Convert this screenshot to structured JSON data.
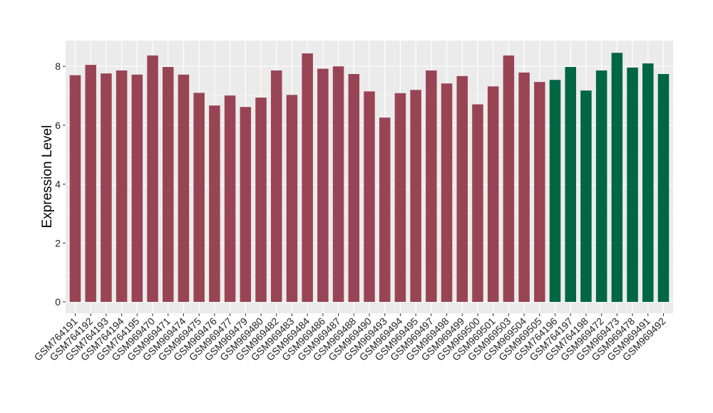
{
  "chart_data": {
    "type": "bar",
    "title": "",
    "xlabel": "",
    "ylabel": "Expression Level",
    "ylim": [
      0,
      8.9
    ],
    "yticks": [
      0,
      2,
      4,
      6,
      8
    ],
    "ytick_labels": [
      "0",
      "2",
      "4",
      "6",
      "8"
    ],
    "grid": true,
    "legend": "none",
    "colors": {
      "panel_background": "#ebebeb",
      "grid_major": "#ffffff",
      "group_a": "#994455",
      "group_b": "#006644"
    },
    "categories": [
      "GSM764191",
      "GSM764192",
      "GSM764193",
      "GSM764194",
      "GSM764195",
      "GSM969470",
      "GSM969471",
      "GSM969474",
      "GSM969475",
      "GSM969476",
      "GSM969477",
      "GSM969479",
      "GSM969480",
      "GSM969482",
      "GSM969483",
      "GSM969484",
      "GSM969486",
      "GSM969487",
      "GSM969488",
      "GSM969490",
      "GSM969493",
      "GSM969494",
      "GSM969495",
      "GSM969497",
      "GSM969498",
      "GSM969499",
      "GSM969500",
      "GSM969501",
      "GSM969503",
      "GSM969504",
      "GSM969505",
      "GSM764196",
      "GSM764197",
      "GSM764198",
      "GSM969472",
      "GSM969473",
      "GSM969478",
      "GSM969491",
      "GSM969492"
    ],
    "values": [
      7.7,
      8.05,
      7.76,
      7.86,
      7.72,
      8.37,
      7.98,
      7.72,
      7.1,
      6.67,
      7.01,
      6.62,
      6.94,
      7.86,
      7.03,
      8.44,
      7.92,
      8.0,
      7.74,
      7.15,
      6.26,
      7.09,
      7.2,
      7.86,
      7.42,
      7.67,
      6.71,
      7.32,
      8.37,
      7.79,
      7.47,
      7.54,
      7.98,
      7.18,
      7.86,
      8.46,
      7.96,
      8.1,
      7.74
    ],
    "groups": [
      "a",
      "a",
      "a",
      "a",
      "a",
      "a",
      "a",
      "a",
      "a",
      "a",
      "a",
      "a",
      "a",
      "a",
      "a",
      "a",
      "a",
      "a",
      "a",
      "a",
      "a",
      "a",
      "a",
      "a",
      "a",
      "a",
      "a",
      "a",
      "a",
      "a",
      "a",
      "b",
      "b",
      "b",
      "b",
      "b",
      "b",
      "b",
      "b"
    ]
  }
}
